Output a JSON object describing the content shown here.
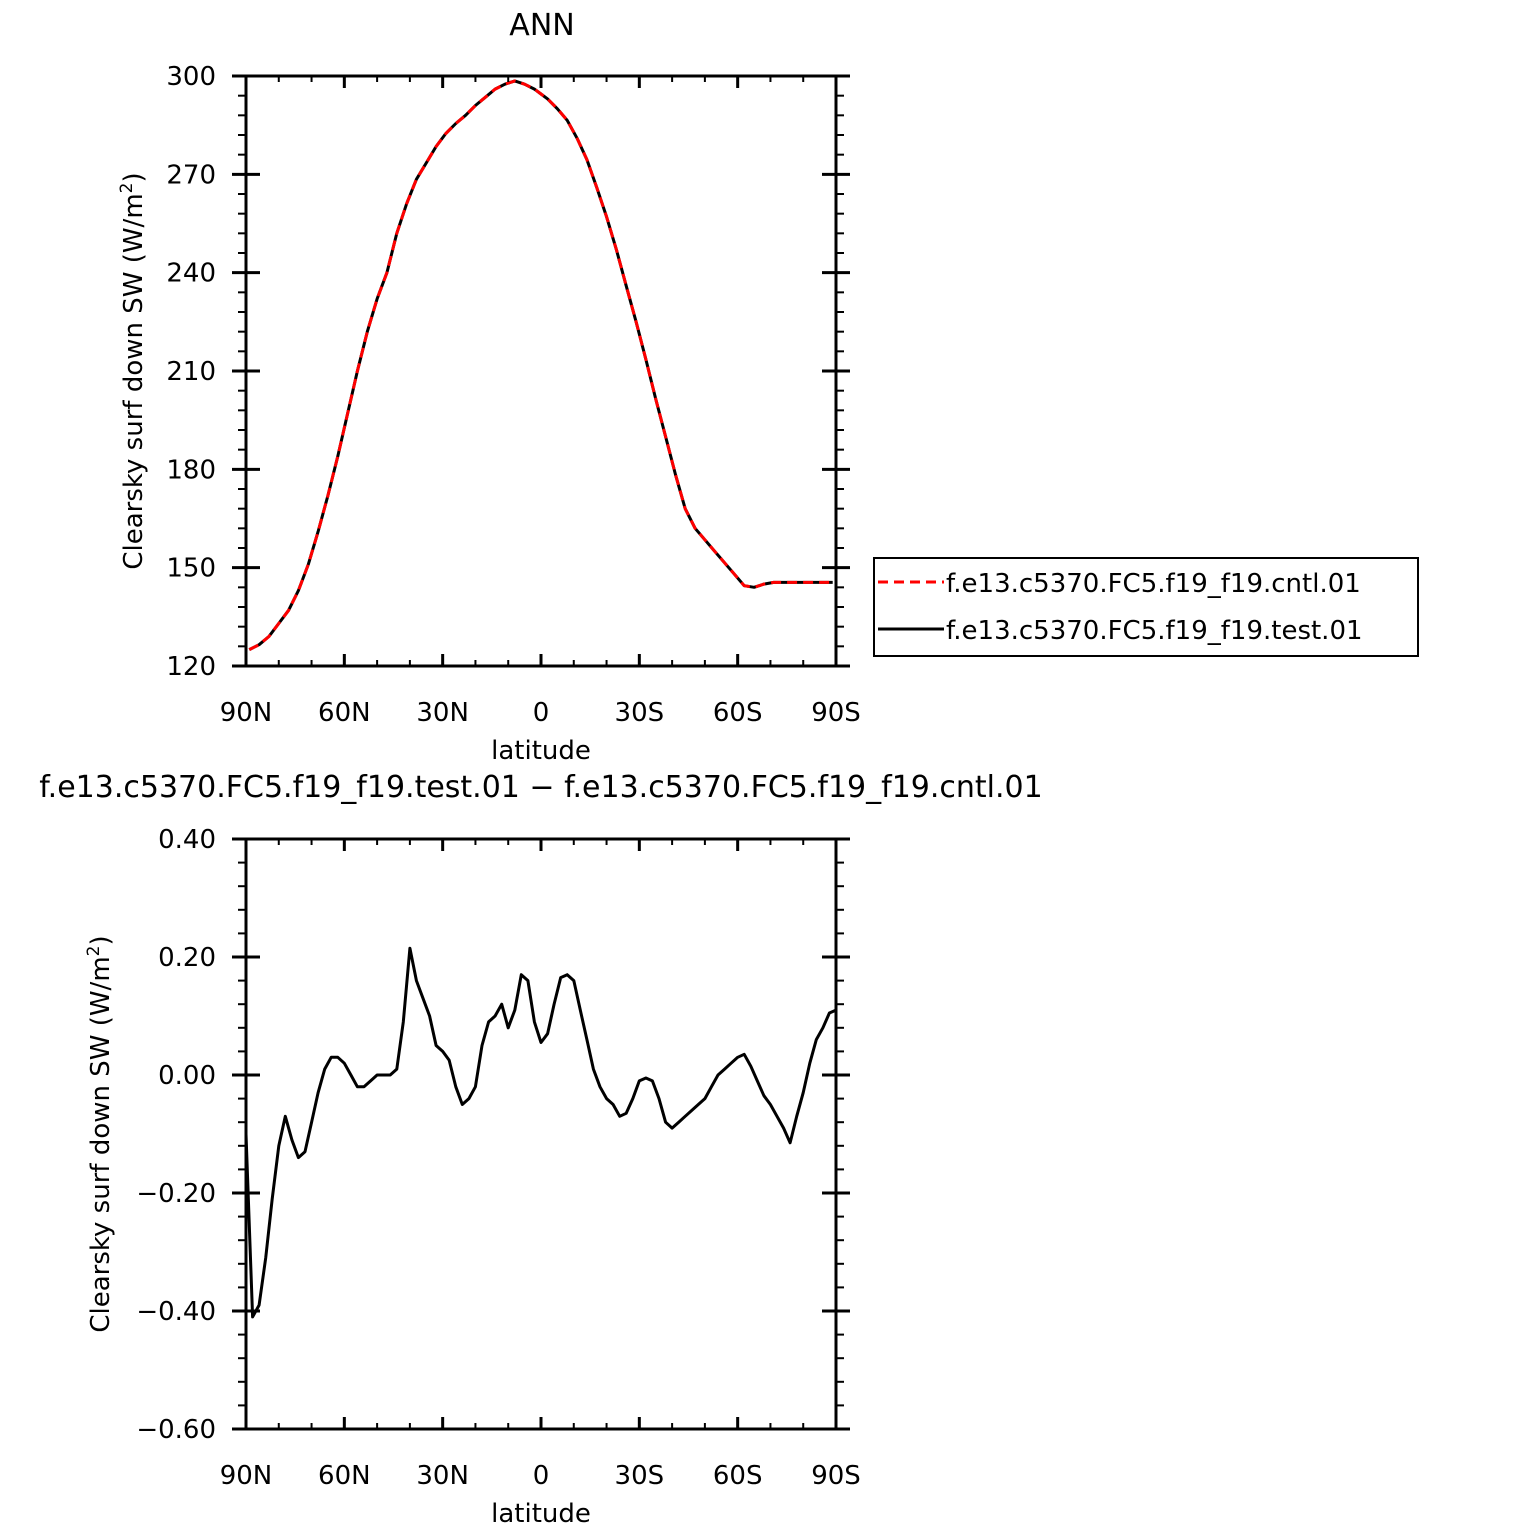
{
  "chart_data": [
    {
      "type": "line",
      "title": "ANN",
      "xlabel": "latitude",
      "ylabel": "Clearsky surf down SW (W/m",
      "ylabel_sup": "2",
      "ylabel_close": ")",
      "xlim": [
        -90,
        90
      ],
      "ylim": [
        120,
        300
      ],
      "x_ticks": [
        -90,
        -60,
        -30,
        0,
        30,
        60,
        90
      ],
      "x_tick_labels": [
        "90N",
        "60N",
        "30N",
        "0",
        "30S",
        "60S",
        "90S"
      ],
      "y_ticks": [
        120,
        150,
        180,
        210,
        240,
        270,
        300
      ],
      "y_tick_labels": [
        "120",
        "150",
        "180",
        "210",
        "240",
        "270",
        "300"
      ],
      "x": [
        -89,
        -86,
        -83,
        -80,
        -77,
        -74,
        -71,
        -68,
        -65,
        -62,
        -59,
        -56,
        -53,
        -50,
        -47,
        -44,
        -41,
        -38,
        -35,
        -32,
        -29,
        -26,
        -23,
        -20,
        -17,
        -14,
        -11,
        -8,
        -5,
        -2,
        0,
        2,
        5,
        8,
        11,
        14,
        17,
        20,
        23,
        26,
        29,
        32,
        35,
        38,
        41,
        44,
        47,
        50,
        53,
        56,
        59,
        62,
        65,
        68,
        71,
        74,
        77,
        80,
        83,
        86,
        89
      ],
      "series": [
        {
          "name": "f.e13.c5370.FC5.f19_f19.cntl.01",
          "color": "#ff0000",
          "dash": "dashed",
          "values": [
            125,
            126.5,
            129,
            133,
            137,
            143,
            151,
            161,
            172,
            184,
            197,
            210,
            222,
            232,
            240,
            252,
            261,
            268.5,
            273.5,
            278.5,
            282.5,
            285.5,
            288,
            291,
            293.5,
            296,
            297.5,
            298.5,
            297.5,
            296,
            294.5,
            293,
            290,
            286.5,
            281,
            274.5,
            266,
            257,
            247,
            236,
            225,
            213.5,
            201.5,
            190,
            178.5,
            168,
            162,
            158.5,
            155,
            151.5,
            148,
            144.5,
            144,
            145,
            145.5,
            145.5,
            145.5,
            145.5,
            145.5,
            145.5,
            145.5
          ]
        },
        {
          "name": "f.e13.c5370.FC5.f19_f19.test.01",
          "color": "#000000",
          "dash": "solid",
          "values": [
            125,
            126.5,
            129,
            133,
            137,
            143,
            151,
            161,
            172,
            184,
            197,
            210,
            222,
            232,
            240,
            252,
            261,
            268.5,
            273.5,
            278.5,
            282.5,
            285.5,
            288,
            291,
            293.5,
            296,
            297.5,
            298.5,
            297.5,
            296,
            294.5,
            293,
            290,
            286.5,
            281,
            274.5,
            266,
            257,
            247,
            236,
            225,
            213.5,
            201.5,
            190,
            178.5,
            168,
            162,
            158.5,
            155,
            151.5,
            148,
            144.5,
            144,
            145,
            145.5,
            145.5,
            145.5,
            145.5,
            145.5,
            145.5,
            145.5
          ]
        }
      ],
      "legend_position": "right"
    },
    {
      "type": "line",
      "title": "f.e13.c5370.FC5.f19_f19.test.01 − f.e13.c5370.FC5.f19_f19.cntl.01",
      "xlabel": "latitude",
      "ylabel": "Clearsky surf down SW (W/m",
      "ylabel_sup": "2",
      "ylabel_close": ")",
      "xlim": [
        -90,
        90
      ],
      "ylim": [
        -0.6,
        0.4
      ],
      "x_ticks": [
        -90,
        -60,
        -30,
        0,
        30,
        60,
        90
      ],
      "x_tick_labels": [
        "90N",
        "60N",
        "30N",
        "0",
        "30S",
        "60S",
        "90S"
      ],
      "y_ticks": [
        -0.6,
        -0.4,
        -0.2,
        0.0,
        0.2,
        0.4
      ],
      "y_tick_labels": [
        "−0.60",
        "−0.40",
        "−0.20",
        "0.00",
        "0.20",
        "0.40"
      ],
      "x": [
        -90,
        -88,
        -86,
        -84,
        -82,
        -80,
        -78,
        -76,
        -74,
        -72,
        -70,
        -68,
        -66,
        -64,
        -62,
        -60,
        -58,
        -56,
        -54,
        -52,
        -50,
        -48,
        -46,
        -44,
        -42,
        -40,
        -38,
        -36,
        -34,
        -32,
        -30,
        -28,
        -26,
        -24,
        -22,
        -20,
        -18,
        -16,
        -14,
        -12,
        -10,
        -8,
        -6,
        -4,
        -2,
        0,
        2,
        4,
        6,
        8,
        10,
        12,
        14,
        16,
        18,
        20,
        22,
        24,
        26,
        28,
        30,
        32,
        34,
        36,
        38,
        40,
        42,
        44,
        46,
        48,
        50,
        52,
        54,
        56,
        58,
        60,
        62,
        64,
        66,
        68,
        70,
        72,
        74,
        76,
        78,
        80,
        82,
        84,
        86,
        88,
        90
      ],
      "series": [
        {
          "name": "",
          "color": "#000000",
          "values": [
            -0.1,
            -0.41,
            -0.39,
            -0.31,
            -0.21,
            -0.12,
            -0.07,
            -0.11,
            -0.14,
            -0.13,
            -0.08,
            -0.03,
            0.01,
            0.03,
            0.03,
            0.02,
            0.0,
            -0.02,
            -0.02,
            -0.01,
            0.0,
            0.0,
            0.0,
            0.01,
            0.09,
            0.215,
            0.16,
            0.13,
            0.1,
            0.05,
            0.04,
            0.025,
            -0.02,
            -0.05,
            -0.04,
            -0.02,
            0.05,
            0.09,
            0.1,
            0.12,
            0.08,
            0.11,
            0.17,
            0.16,
            0.09,
            0.055,
            0.07,
            0.12,
            0.165,
            0.17,
            0.16,
            0.11,
            0.06,
            0.01,
            -0.02,
            -0.04,
            -0.05,
            -0.07,
            -0.065,
            -0.04,
            -0.01,
            -0.005,
            -0.01,
            -0.04,
            -0.08,
            -0.09,
            -0.08,
            -0.07,
            -0.06,
            -0.05,
            -0.04,
            -0.02,
            0.0,
            0.01,
            0.02,
            0.03,
            0.035,
            0.015,
            -0.01,
            -0.035,
            -0.05,
            -0.07,
            -0.09,
            -0.115,
            -0.07,
            -0.03,
            0.02,
            0.06,
            0.08,
            0.105,
            0.11
          ]
        }
      ]
    }
  ]
}
